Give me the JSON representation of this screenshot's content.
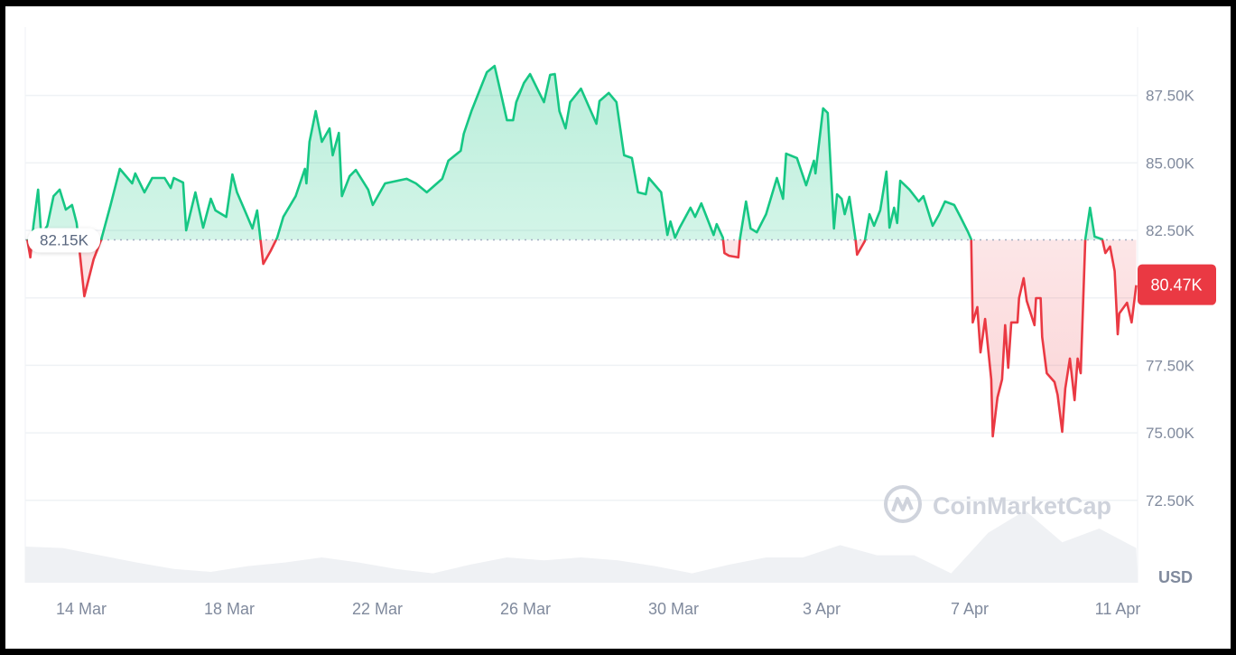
{
  "chart_data": {
    "type": "area",
    "currency_label": "USD",
    "watermark": "CoinMarketCap",
    "baseline": {
      "value": 82.15,
      "label": "82.15K"
    },
    "current": {
      "value": 80.47,
      "label": "80.47K"
    },
    "colors": {
      "up": "#16c784",
      "down": "#ea3943",
      "grid": "#eff2f5",
      "axis_text": "#808a9d",
      "volume": "#eff1f4"
    },
    "ylim": [
      70.5,
      90
    ],
    "y_unit": "K USD",
    "yticks": [
      {
        "value": 87.5,
        "label": "87.50K"
      },
      {
        "value": 85,
        "label": "85.00K"
      },
      {
        "value": 82.5,
        "label": "82.50K"
      },
      {
        "value": 80,
        "label": "80.00K"
      },
      {
        "value": 77.5,
        "label": "77.50K"
      },
      {
        "value": 75,
        "label": "75.00K"
      },
      {
        "value": 72.5,
        "label": "72.50K"
      }
    ],
    "xticks": [
      "14 Mar",
      "18 Mar",
      "22 Mar",
      "26 Mar",
      "30 Mar",
      "3 Apr",
      "7 Apr",
      "11 Apr"
    ],
    "grid": true,
    "series": [
      {
        "points": [
          [
            "12 Mar 13:00",
            82.17
          ],
          [
            "12 Mar 15:00",
            81.5
          ],
          [
            "12 Mar 17:00",
            82.67
          ],
          [
            "12 Mar 20:00",
            84.01
          ],
          [
            "12 Mar 22:00",
            82.33
          ],
          [
            "13 Mar 02:00",
            82.67
          ],
          [
            "13 Mar 06:00",
            83.77
          ],
          [
            "13 Mar 10:00",
            84.01
          ],
          [
            "13 Mar 14:00",
            83.27
          ],
          [
            "13 Mar 18:00",
            83.44
          ],
          [
            "13 Mar 21:00",
            82.77
          ],
          [
            "14 Mar 02:00",
            80.06
          ],
          [
            "14 Mar 08:00",
            81.43
          ],
          [
            "14 Mar 13:00",
            82.17
          ],
          [
            "14 Mar 19:00",
            83.44
          ],
          [
            "15 Mar 01:00",
            84.78
          ],
          [
            "15 Mar 09:00",
            84.24
          ],
          [
            "15 Mar 11:00",
            84.61
          ],
          [
            "15 Mar 17:00",
            83.91
          ],
          [
            "15 Mar 22:00",
            84.44
          ],
          [
            "16 Mar 06:00",
            84.44
          ],
          [
            "16 Mar 10:00",
            84.07
          ],
          [
            "16 Mar 12:00",
            84.44
          ],
          [
            "16 Mar 18:00",
            84.27
          ],
          [
            "16 Mar 20:00",
            82.5
          ],
          [
            "17 Mar 02:00",
            83.91
          ],
          [
            "17 Mar 07:00",
            82.6
          ],
          [
            "17 Mar 12:00",
            83.67
          ],
          [
            "17 Mar 15:00",
            83.24
          ],
          [
            "17 Mar 22:00",
            83.0
          ],
          [
            "18 Mar 02:00",
            84.57
          ],
          [
            "18 Mar 05:00",
            83.91
          ],
          [
            "18 Mar 10:00",
            83.24
          ],
          [
            "18 Mar 15:00",
            82.57
          ],
          [
            "18 Mar 18:00",
            83.24
          ],
          [
            "18 Mar 22:00",
            81.26
          ],
          [
            "19 Mar 03:00",
            81.76
          ],
          [
            "19 Mar 07:00",
            82.23
          ],
          [
            "19 Mar 11:00",
            83.0
          ],
          [
            "19 Mar 19:00",
            83.77
          ],
          [
            "20 Mar 01:00",
            84.78
          ],
          [
            "20 Mar 02:00",
            84.24
          ],
          [
            "20 Mar 04:00",
            85.78
          ],
          [
            "20 Mar 08:00",
            86.92
          ],
          [
            "20 Mar 12:00",
            85.78
          ],
          [
            "20 Mar 17:00",
            86.28
          ],
          [
            "20 Mar 19:00",
            85.28
          ],
          [
            "20 Mar 23:00",
            86.11
          ],
          [
            "21 Mar 01:00",
            83.77
          ],
          [
            "21 Mar 06:00",
            84.51
          ],
          [
            "21 Mar 10:00",
            84.74
          ],
          [
            "21 Mar 18:00",
            84.01
          ],
          [
            "21 Mar 21:00",
            83.44
          ],
          [
            "22 Mar 05:00",
            84.24
          ],
          [
            "22 Mar 19:00",
            84.41
          ],
          [
            "23 Mar 01:00",
            84.24
          ],
          [
            "23 Mar 08:00",
            83.91
          ],
          [
            "23 Mar 18:00",
            84.41
          ],
          [
            "23 Mar 22:00",
            85.08
          ],
          [
            "24 Mar 06:00",
            85.45
          ],
          [
            "24 Mar 08:00",
            86.08
          ],
          [
            "24 Mar 13:00",
            86.92
          ],
          [
            "24 Mar 19:00",
            87.79
          ],
          [
            "24 Mar 23:00",
            88.36
          ],
          [
            "25 Mar 04:00",
            88.59
          ],
          [
            "25 Mar 08:00",
            87.59
          ],
          [
            "25 Mar 12:00",
            86.58
          ],
          [
            "25 Mar 16:00",
            86.58
          ],
          [
            "25 Mar 18:00",
            87.25
          ],
          [
            "25 Mar 23:00",
            87.96
          ],
          [
            "26 Mar 03:00",
            88.29
          ],
          [
            "26 Mar 09:00",
            87.59
          ],
          [
            "26 Mar 12:00",
            87.25
          ],
          [
            "26 Mar 16:00",
            88.26
          ],
          [
            "26 Mar 19:00",
            88.29
          ],
          [
            "26 Mar 22:00",
            86.92
          ],
          [
            "27 Mar 02:00",
            86.28
          ],
          [
            "27 Mar 05:00",
            87.25
          ],
          [
            "27 Mar 12:00",
            87.75
          ],
          [
            "27 Mar 22:00",
            86.45
          ],
          [
            "28 Mar 00:00",
            87.29
          ],
          [
            "28 Mar 06:00",
            87.59
          ],
          [
            "28 Mar 11:00",
            87.25
          ],
          [
            "28 Mar 16:00",
            85.28
          ],
          [
            "28 Mar 21:00",
            85.18
          ],
          [
            "29 Mar 01:00",
            83.91
          ],
          [
            "29 Mar 06:00",
            83.84
          ],
          [
            "29 Mar 08:00",
            84.44
          ],
          [
            "29 Mar 16:00",
            83.91
          ],
          [
            "29 Mar 20:00",
            82.33
          ],
          [
            "29 Mar 22:00",
            82.83
          ],
          [
            "30 Mar 01:00",
            82.23
          ],
          [
            "30 Mar 04:00",
            82.6
          ],
          [
            "30 Mar 11:00",
            83.34
          ],
          [
            "30 Mar 14:00",
            83.0
          ],
          [
            "30 Mar 18:00",
            83.5
          ],
          [
            "30 Mar 23:00",
            82.77
          ],
          [
            "31 Mar 02:00",
            82.33
          ],
          [
            "31 Mar 04:00",
            82.73
          ],
          [
            "31 Mar 08:00",
            82.23
          ],
          [
            "31 Mar 09:00",
            81.66
          ],
          [
            "31 Mar 12:00",
            81.56
          ],
          [
            "31 Mar 18:00",
            81.5
          ],
          [
            "31 Mar 19:00",
            82.17
          ],
          [
            "31 Mar 23:00",
            83.57
          ],
          [
            "1 Apr 02:00",
            82.57
          ],
          [
            "1 Apr 06:00",
            82.43
          ],
          [
            "1 Apr 12:00",
            83.1
          ],
          [
            "1 Apr 19:00",
            84.44
          ],
          [
            "1 Apr 23:00",
            83.67
          ],
          [
            "2 Apr 01:00",
            85.34
          ],
          [
            "2 Apr 08:00",
            85.18
          ],
          [
            "2 Apr 14:00",
            84.17
          ],
          [
            "2 Apr 19:00",
            85.08
          ],
          [
            "2 Apr 20:00",
            84.61
          ],
          [
            "3 Apr 01:00",
            87.02
          ],
          [
            "3 Apr 04:00",
            86.85
          ],
          [
            "3 Apr 08:00",
            82.57
          ],
          [
            "3 Apr 10:00",
            83.84
          ],
          [
            "3 Apr 13:00",
            83.67
          ],
          [
            "3 Apr 15:00",
            83.1
          ],
          [
            "3 Apr 18:00",
            83.74
          ],
          [
            "3 Apr 22:00",
            82.17
          ],
          [
            "3 Apr 23:00",
            81.6
          ],
          [
            "4 Apr 04:00",
            82.1
          ],
          [
            "4 Apr 07:00",
            83.1
          ],
          [
            "4 Apr 10:00",
            82.67
          ],
          [
            "4 Apr 14:00",
            83.24
          ],
          [
            "4 Apr 18:00",
            84.68
          ],
          [
            "4 Apr 20:00",
            82.6
          ],
          [
            "4 Apr 23:00",
            83.34
          ],
          [
            "5 Apr 01:00",
            82.77
          ],
          [
            "5 Apr 03:00",
            84.34
          ],
          [
            "5 Apr 09:00",
            84.01
          ],
          [
            "5 Apr 15:00",
            83.57
          ],
          [
            "5 Apr 18:00",
            83.77
          ],
          [
            "6 Apr 00:00",
            82.67
          ],
          [
            "6 Apr 04:00",
            83.07
          ],
          [
            "6 Apr 08:00",
            83.57
          ],
          [
            "6 Apr 14:00",
            83.44
          ],
          [
            "6 Apr 18:00",
            83.0
          ],
          [
            "6 Apr 23:00",
            82.43
          ],
          [
            "7 Apr 01:00",
            82.17
          ],
          [
            "7 Apr 02:00",
            79.09
          ],
          [
            "7 Apr 05:00",
            79.66
          ],
          [
            "7 Apr 07:00",
            77.98
          ],
          [
            "7 Apr 10:00",
            79.22
          ],
          [
            "7 Apr 14:00",
            76.98
          ],
          [
            "7 Apr 15:00",
            74.87
          ],
          [
            "7 Apr 18:00",
            76.31
          ],
          [
            "7 Apr 21:00",
            76.98
          ],
          [
            "7 Apr 23:00",
            78.99
          ],
          [
            "8 Apr 01:00",
            77.41
          ],
          [
            "8 Apr 03:00",
            79.09
          ],
          [
            "8 Apr 07:00",
            79.09
          ],
          [
            "8 Apr 08:00",
            79.99
          ],
          [
            "8 Apr 11:00",
            80.73
          ],
          [
            "8 Apr 13:00",
            79.89
          ],
          [
            "8 Apr 18:00",
            78.99
          ],
          [
            "8 Apr 19:00",
            79.99
          ],
          [
            "8 Apr 22:00",
            79.99
          ],
          [
            "8 Apr 23:00",
            78.55
          ],
          [
            "9 Apr 02:00",
            77.21
          ],
          [
            "9 Apr 07:00",
            76.88
          ],
          [
            "9 Apr 09:00",
            76.41
          ],
          [
            "9 Apr 12:00",
            75.04
          ],
          [
            "9 Apr 14:00",
            76.64
          ],
          [
            "9 Apr 17:00",
            77.75
          ],
          [
            "9 Apr 20:00",
            76.21
          ],
          [
            "9 Apr 22:00",
            77.75
          ],
          [
            "10 Apr 00:00",
            77.21
          ],
          [
            "10 Apr 03:00",
            82.17
          ],
          [
            "10 Apr 06:00",
            83.34
          ],
          [
            "10 Apr 09:00",
            82.27
          ],
          [
            "10 Apr 14:00",
            82.17
          ],
          [
            "10 Apr 16:00",
            81.66
          ],
          [
            "10 Apr 19:00",
            81.9
          ],
          [
            "10 Apr 22:00",
            80.99
          ],
          [
            "11 Apr 00:00",
            78.65
          ],
          [
            "11 Apr 01:00",
            79.42
          ],
          [
            "11 Apr 06:00",
            79.82
          ],
          [
            "11 Apr 09:00",
            79.09
          ],
          [
            "11 Apr 12:00",
            80.47
          ]
        ]
      }
    ],
    "volume_relative": [
      [
        "12 Mar 12:00",
        0.5
      ],
      [
        "13 Mar 12:00",
        0.48
      ],
      [
        "14 Mar 12:00",
        0.38
      ],
      [
        "15 Mar 12:00",
        0.28
      ],
      [
        "16 Mar 12:00",
        0.19
      ],
      [
        "17 Mar 12:00",
        0.15
      ],
      [
        "18 Mar 12:00",
        0.23
      ],
      [
        "19 Mar 12:00",
        0.28
      ],
      [
        "20 Mar 12:00",
        0.35
      ],
      [
        "21 Mar 12:00",
        0.28
      ],
      [
        "22 Mar 12:00",
        0.19
      ],
      [
        "23 Mar 12:00",
        0.13
      ],
      [
        "24 Mar 12:00",
        0.25
      ],
      [
        "25 Mar 12:00",
        0.35
      ],
      [
        "26 Mar 12:00",
        0.31
      ],
      [
        "27 Mar 12:00",
        0.35
      ],
      [
        "28 Mar 12:00",
        0.31
      ],
      [
        "29 Mar 12:00",
        0.23
      ],
      [
        "30 Mar 12:00",
        0.13
      ],
      [
        "31 Mar 12:00",
        0.25
      ],
      [
        "1 Apr 12:00",
        0.35
      ],
      [
        "2 Apr 12:00",
        0.35
      ],
      [
        "3 Apr 12:00",
        0.52
      ],
      [
        "4 Apr 12:00",
        0.38
      ],
      [
        "5 Apr 12:00",
        0.38
      ],
      [
        "6 Apr 12:00",
        0.13
      ],
      [
        "7 Apr 12:00",
        0.69
      ],
      [
        "8 Apr 12:00",
        1.0
      ],
      [
        "9 Apr 12:00",
        0.56
      ],
      [
        "10 Apr 12:00",
        0.75
      ],
      [
        "11 Apr 12:00",
        0.48
      ]
    ]
  }
}
